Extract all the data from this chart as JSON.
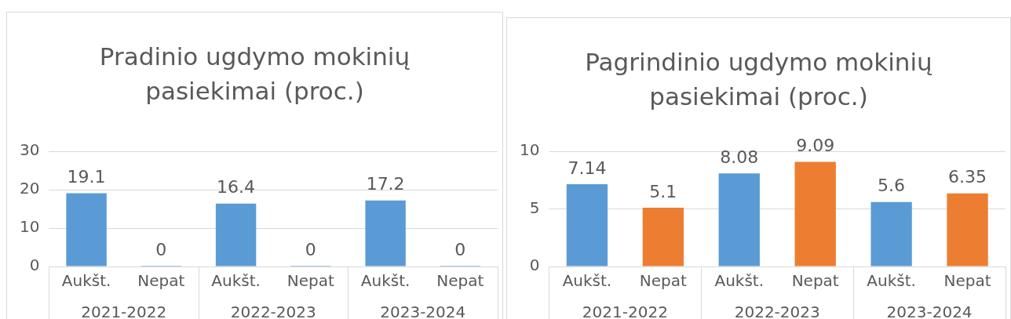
{
  "chart_data": [
    {
      "type": "bar",
      "title": "Pradinio ugdymo mokinių pasiekimai (proc.)",
      "categories": [
        "Aukšt.",
        "Nepat",
        "Aukšt.",
        "Nepat",
        "Aukšt.",
        "Nepat"
      ],
      "values": [
        19.1,
        0,
        16.4,
        0,
        17.2,
        0
      ],
      "colors": [
        "#5b9bd5",
        "#5b9bd5",
        "#5b9bd5",
        "#5b9bd5",
        "#5b9bd5",
        "#5b9bd5"
      ],
      "ylim": [
        0,
        30
      ],
      "yticks": [
        0,
        10,
        20,
        30
      ],
      "grid": "y",
      "data_labels": true,
      "legend": false,
      "annotations": [
        "2021-2022",
        "2022-2023",
        "2023-2024"
      ]
    },
    {
      "type": "bar",
      "title": "Pagrindinio ugdymo mokinių pasiekimai (proc.)",
      "categories": [
        "Aukšt.",
        "Nepat",
        "Aukšt.",
        "Nepat",
        "Aukšt.",
        "Nepat"
      ],
      "values": [
        7.14,
        5.1,
        8.08,
        9.09,
        5.6,
        6.35
      ],
      "colors": [
        "#5b9bd5",
        "#ed7d31",
        "#5b9bd5",
        "#ed7d31",
        "#5b9bd5",
        "#ed7d31"
      ],
      "ylim": [
        0,
        10
      ],
      "yticks": [
        0,
        5,
        10
      ],
      "grid": "y",
      "data_labels": true,
      "legend": false,
      "annotations": [
        "2021-2022",
        "2022-2023",
        "2023-2024"
      ]
    }
  ]
}
